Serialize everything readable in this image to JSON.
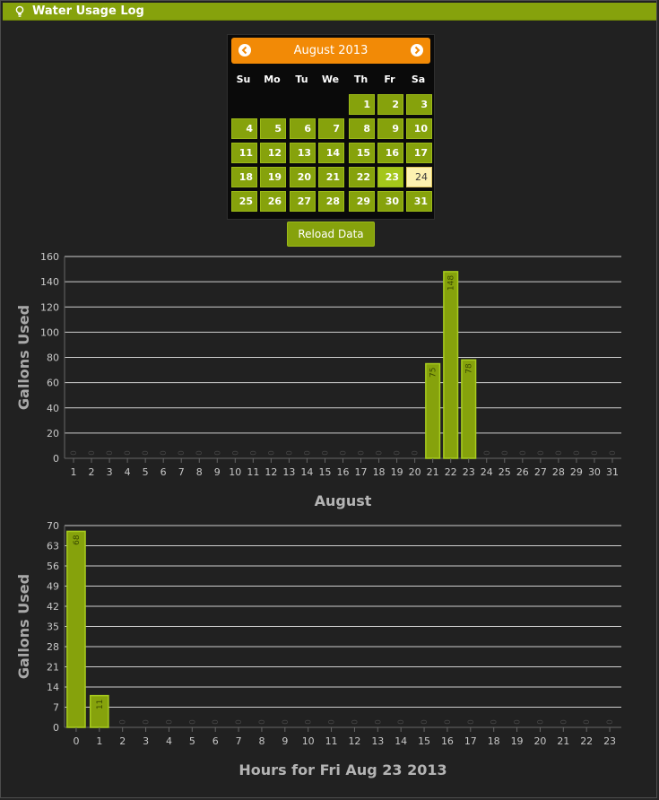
{
  "window": {
    "title": "Water Usage Log"
  },
  "calendar": {
    "month_label": "August 2013",
    "weekdays": [
      "Su",
      "Mo",
      "Tu",
      "We",
      "Th",
      "Fr",
      "Sa"
    ],
    "leading_blanks": 4,
    "days": [
      "1",
      "2",
      "3",
      "4",
      "5",
      "6",
      "7",
      "8",
      "9",
      "10",
      "11",
      "12",
      "13",
      "14",
      "15",
      "16",
      "17",
      "18",
      "19",
      "20",
      "21",
      "22",
      "23",
      "24",
      "25",
      "26",
      "27",
      "28",
      "29",
      "30",
      "31"
    ],
    "selected_day": "23",
    "today": "24",
    "colors": {
      "header": "#f28a06",
      "cell": "#86a20c",
      "selected": "#a4c61a",
      "today": "#fdf2b0"
    }
  },
  "reload_button": {
    "label": "Reload Data"
  },
  "chart_data": [
    {
      "type": "bar",
      "title": "",
      "xlabel": "August",
      "ylabel": "Gallons Used",
      "ylim": [
        0,
        160
      ],
      "yticks": [
        0,
        20,
        40,
        60,
        80,
        100,
        120,
        140,
        160
      ],
      "grid": true,
      "color": "#86a20c",
      "categories": [
        "1",
        "2",
        "3",
        "4",
        "5",
        "6",
        "7",
        "8",
        "9",
        "10",
        "11",
        "12",
        "13",
        "14",
        "15",
        "16",
        "17",
        "18",
        "19",
        "20",
        "21",
        "22",
        "23",
        "24",
        "25",
        "26",
        "27",
        "28",
        "29",
        "30",
        "31"
      ],
      "values": [
        0,
        0,
        0,
        0,
        0,
        0,
        0,
        0,
        0,
        0,
        0,
        0,
        0,
        0,
        0,
        0,
        0,
        0,
        0,
        0,
        75,
        148,
        78,
        0,
        0,
        0,
        0,
        0,
        0,
        0,
        0
      ]
    },
    {
      "type": "bar",
      "title": "",
      "xlabel": "Hours for Fri Aug 23 2013",
      "ylabel": "Gallons Used",
      "ylim": [
        0,
        70
      ],
      "yticks": [
        0,
        7,
        14,
        21,
        28,
        35,
        42,
        49,
        56,
        63,
        70
      ],
      "grid": true,
      "color": "#86a20c",
      "categories": [
        "0",
        "1",
        "2",
        "3",
        "4",
        "5",
        "6",
        "7",
        "8",
        "9",
        "10",
        "11",
        "12",
        "13",
        "14",
        "15",
        "16",
        "17",
        "18",
        "19",
        "20",
        "21",
        "22",
        "23"
      ],
      "values": [
        68,
        11,
        0,
        0,
        0,
        0,
        0,
        0,
        0,
        0,
        0,
        0,
        0,
        0,
        0,
        0,
        0,
        0,
        0,
        0,
        0,
        0,
        0,
        0
      ]
    }
  ]
}
